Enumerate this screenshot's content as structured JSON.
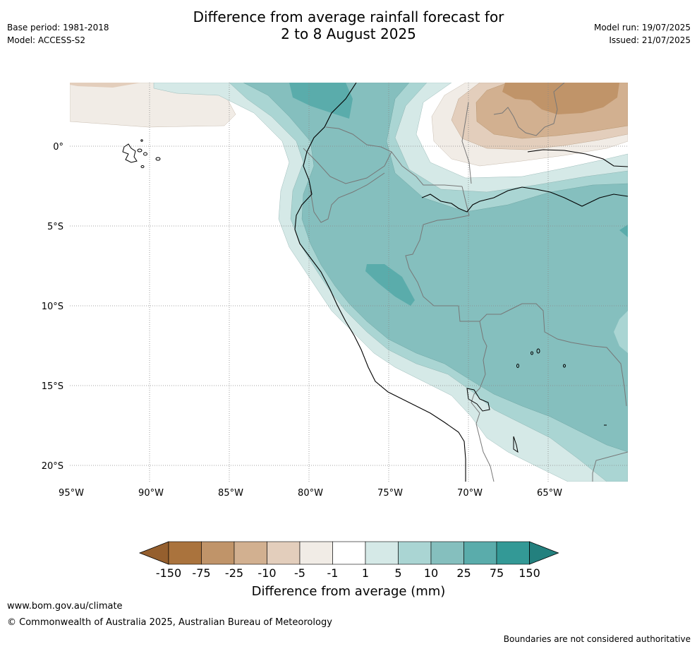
{
  "header": {
    "title_line1": "Difference from average rainfall forecast for",
    "title_line2": "2 to 8 August 2025",
    "base_period": "Base period: 1981-2018",
    "model": "Model: ACCESS-S2",
    "model_run": "Model run: 19/07/2025",
    "issued": "Issued: 21/07/2025"
  },
  "map": {
    "lon_labels": [
      "95°W",
      "90°W",
      "85°W",
      "80°W",
      "75°W",
      "70°W",
      "65°W"
    ],
    "lat_labels": [
      "0°",
      "5°S",
      "10°S",
      "15°S",
      "20°S"
    ]
  },
  "colorbar": {
    "label": "Difference from average (mm)",
    "ticks": [
      "-150",
      "-75",
      "-25",
      "-10",
      "-5",
      "-1",
      "1",
      "5",
      "10",
      "25",
      "75",
      "150"
    ],
    "colors": [
      "#aa733d",
      "#c09469",
      "#d2b090",
      "#e3cebc",
      "#f1ece6",
      "#ffffff",
      "#d5e9e7",
      "#aad5d3",
      "#85bfbe",
      "#5aacab",
      "#339996"
    ],
    "extend_low_color": "#955f2e",
    "extend_high_color": "#23807e"
  },
  "footer": {
    "url": "www.bom.gov.au/climate",
    "copyright": "© Commonwealth of Australia 2025, Australian Bureau of Meteorology",
    "disclaimer": "Boundaries are not considered authoritative"
  }
}
